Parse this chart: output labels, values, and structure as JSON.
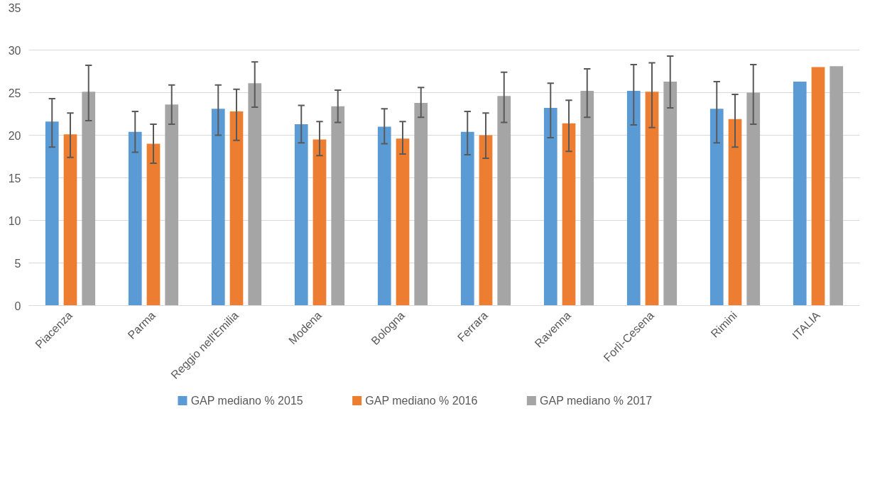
{
  "chart_data": {
    "type": "bar",
    "categories": [
      "Piacenza",
      "Parma",
      "Reggio nell'Emilia",
      "Modena",
      "Bologna",
      "Ferrara",
      "Ravenna",
      "Forlì-Cesena",
      "Rimini",
      "ITALIA"
    ],
    "series": [
      {
        "name": "GAP mediano % 2015",
        "color": "#5b9bd5",
        "values": [
          21.6,
          20.4,
          23.1,
          21.3,
          21.0,
          20.4,
          23.2,
          25.2,
          23.1,
          26.3
        ],
        "errors": [
          [
            18.6,
            24.3
          ],
          [
            18.0,
            22.8
          ],
          [
            20.0,
            25.9
          ],
          [
            19.1,
            23.5
          ],
          [
            19.0,
            23.1
          ],
          [
            17.7,
            22.8
          ],
          [
            19.7,
            26.1
          ],
          [
            21.2,
            28.3
          ],
          [
            19.1,
            26.3
          ],
          null
        ]
      },
      {
        "name": "GAP mediano % 2016",
        "color": "#ed7d31",
        "values": [
          20.1,
          19.0,
          22.8,
          19.5,
          19.6,
          20.0,
          21.4,
          25.1,
          21.9,
          28.0
        ],
        "errors": [
          [
            17.4,
            22.6
          ],
          [
            16.7,
            21.3
          ],
          [
            19.4,
            25.4
          ],
          [
            17.6,
            21.6
          ],
          [
            17.8,
            21.6
          ],
          [
            17.3,
            22.6
          ],
          [
            18.1,
            24.1
          ],
          [
            20.9,
            28.5
          ],
          [
            18.6,
            24.8
          ],
          null
        ]
      },
      {
        "name": "GAP mediano % 2017",
        "color": "#a5a5a5",
        "values": [
          25.1,
          23.6,
          26.1,
          23.4,
          23.8,
          24.6,
          25.2,
          26.3,
          25.0,
          28.1
        ],
        "errors": [
          [
            21.7,
            28.2
          ],
          [
            21.3,
            25.9
          ],
          [
            23.3,
            28.6
          ],
          [
            21.5,
            25.3
          ],
          [
            22.1,
            25.6
          ],
          [
            21.5,
            27.4
          ],
          [
            22.1,
            27.8
          ],
          [
            23.2,
            29.3
          ],
          [
            21.3,
            28.3
          ],
          null
        ]
      }
    ],
    "ylim": [
      0,
      35
    ],
    "yticks": [
      0,
      5,
      10,
      15,
      20,
      25,
      30,
      35
    ],
    "grid": "y",
    "legend": "bottom"
  }
}
